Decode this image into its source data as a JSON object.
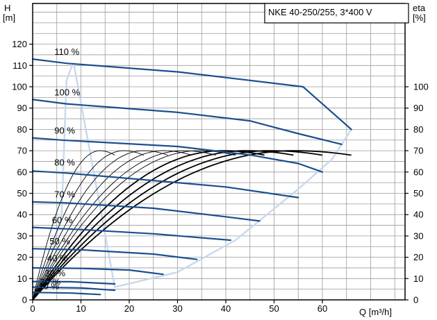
{
  "chart_data": {
    "type": "line",
    "title": "NKE 40-250/255, 3*400 V",
    "xlabel": "Q [m³/h]",
    "ylabel_left": "H\n[m]",
    "ylabel_right": "eta\n[%]",
    "xlim": [
      0,
      75
    ],
    "ylim": [
      0,
      130
    ],
    "eta_lim": [
      0,
      130
    ],
    "grid": true,
    "x_ticks": [
      "0",
      "10",
      "20",
      "30",
      "40",
      "50",
      "60"
    ],
    "y_ticks": [
      "0",
      "10",
      "20",
      "30",
      "40",
      "50",
      "60",
      "70",
      "80",
      "90",
      "100",
      "110",
      "120"
    ],
    "eta_ticks": [
      "0",
      "10",
      "20",
      "30",
      "40",
      "50",
      "60",
      "70",
      "80",
      "90",
      "100"
    ],
    "head_curves": [
      {
        "label": "110 %",
        "points": [
          [
            0,
            113
          ],
          [
            7,
            111
          ],
          [
            30,
            107
          ],
          [
            45,
            103
          ],
          [
            56,
            100
          ],
          [
            66,
            80
          ]
        ]
      },
      {
        "label": "100 %",
        "points": [
          [
            0,
            94
          ],
          [
            7,
            92
          ],
          [
            30,
            88
          ],
          [
            45,
            84
          ],
          [
            55,
            78
          ],
          [
            64,
            73
          ]
        ]
      },
      {
        "label": "90 %",
        "points": [
          [
            0,
            76
          ],
          [
            6,
            75
          ],
          [
            30,
            72
          ],
          [
            45,
            68
          ],
          [
            55,
            64
          ],
          [
            60,
            60
          ]
        ]
      },
      {
        "label": "80 %",
        "points": [
          [
            0,
            60.5
          ],
          [
            7,
            59.5
          ],
          [
            25,
            56
          ],
          [
            40,
            53
          ],
          [
            55,
            48
          ]
        ]
      },
      {
        "label": "70 %",
        "points": [
          [
            0,
            46
          ],
          [
            7,
            45.5
          ],
          [
            25,
            43
          ],
          [
            40,
            39
          ],
          [
            47,
            37
          ]
        ]
      },
      {
        "label": "60 %",
        "points": [
          [
            0,
            34
          ],
          [
            10,
            33
          ],
          [
            25,
            31
          ],
          [
            41,
            28
          ]
        ]
      },
      {
        "label": "50 %",
        "points": [
          [
            0,
            24
          ],
          [
            10,
            23.5
          ],
          [
            25,
            21.5
          ],
          [
            34,
            19
          ]
        ]
      },
      {
        "label": "40 %",
        "points": [
          [
            0,
            15
          ],
          [
            10,
            14.8
          ],
          [
            20,
            14
          ],
          [
            27,
            12
          ]
        ]
      },
      {
        "label": "30 %",
        "points": [
          [
            0,
            8.6
          ],
          [
            8,
            8.5
          ],
          [
            17,
            7.5
          ]
        ]
      },
      {
        "label": "20 %",
        "points": [
          [
            0,
            6
          ],
          [
            10,
            5.6
          ],
          [
            17,
            4.5
          ]
        ]
      },
      {
        "label": "10 %",
        "points": [
          [
            0,
            3.5
          ],
          [
            8,
            3.2
          ],
          [
            14,
            2.5
          ]
        ]
      }
    ],
    "speed_labels": [
      {
        "text": "110 %",
        "q": 4.5,
        "h": 115
      },
      {
        "text": "100 %",
        "q": 4.5,
        "h": 96
      },
      {
        "text": "90 %",
        "q": 4.5,
        "h": 78
      },
      {
        "text": "80 %",
        "q": 4.5,
        "h": 63
      },
      {
        "text": "70 %",
        "q": 4.5,
        "h": 48
      },
      {
        "text": "60 %",
        "q": 4.0,
        "h": 36
      },
      {
        "text": "50 %",
        "q": 3.5,
        "h": 26
      },
      {
        "text": "40 %",
        "q": 3.0,
        "h": 18
      },
      {
        "text": "30 %",
        "q": 2.5,
        "h": 11
      },
      {
        "text": "20 %",
        "q": 1.5,
        "h": 7
      },
      {
        "text": "10 %",
        "q": 1.2,
        "h": 5
      }
    ],
    "envelope": [
      [
        0.5,
        0.8
      ],
      [
        3,
        14
      ],
      [
        6,
        40
      ],
      [
        7,
        103
      ],
      [
        8,
        109
      ],
      [
        8.5,
        111
      ],
      [
        17,
        6
      ],
      [
        30,
        13
      ],
      [
        42,
        28
      ],
      [
        55,
        52
      ],
      [
        62,
        66
      ],
      [
        66,
        80
      ]
    ],
    "efficiency_curves": [
      {
        "q_end": 17,
        "peak": 70
      },
      {
        "q_end": 23,
        "peak": 70
      },
      {
        "q_end": 28,
        "peak": 70
      },
      {
        "q_end": 33,
        "peak": 70
      },
      {
        "q_end": 38,
        "peak": 70
      },
      {
        "q_end": 42,
        "peak": 70
      },
      {
        "q_end": 48,
        "peak": 70
      },
      {
        "q_end": 54,
        "peak": 70
      },
      {
        "q_end": 60,
        "peak": 70
      },
      {
        "q_end": 66,
        "peak": 70
      }
    ],
    "colors": {
      "head": "#1a4f8e",
      "envelope": "#c8d8ec",
      "grid": "#9a9a9a",
      "frame": "#000000",
      "efficiency": "#000000"
    }
  }
}
